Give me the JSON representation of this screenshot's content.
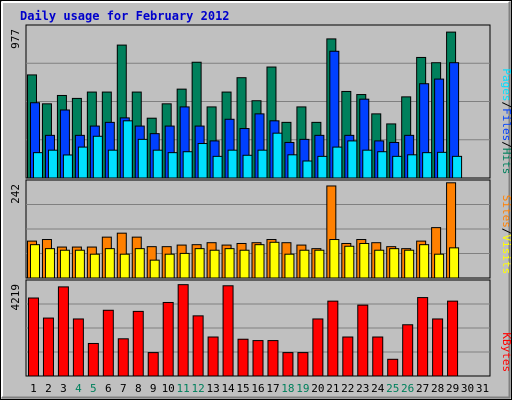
{
  "chart_data": {
    "type": "bar",
    "title": "Daily usage for February 2012",
    "colors": {
      "background": "#c0c0c0",
      "title": "#0000cc",
      "hits": "#00805c",
      "files": "#0040ff",
      "pages": "#00e0ff",
      "visits": "#ff8000",
      "sites": "#ffff00",
      "kbytes": "#ff0000",
      "weekend_day": "#00805c",
      "weekday": "#000000"
    },
    "days": [
      "1",
      "2",
      "3",
      "4",
      "5",
      "6",
      "7",
      "8",
      "9",
      "10",
      "11",
      "12",
      "13",
      "14",
      "15",
      "16",
      "17",
      "18",
      "19",
      "20",
      "21",
      "22",
      "23",
      "24",
      "25",
      "26",
      "27",
      "28",
      "29",
      "30",
      "31"
    ],
    "weekend_days": [
      4,
      5,
      11,
      12,
      18,
      19,
      25,
      26
    ],
    "panels": [
      {
        "id": "hits-files-pages",
        "axis_max_label": "977",
        "ymax": 977,
        "legend": [
          {
            "text": "Pages",
            "color_key": "pages"
          },
          {
            "text": "/",
            "color_key": "weekday"
          },
          {
            "text": "Files",
            "color_key": "files"
          },
          {
            "text": "/",
            "color_key": "weekday"
          },
          {
            "text": "Hits",
            "color_key": "hits"
          }
        ],
        "series": [
          {
            "name": "Hits",
            "color_key": "hits",
            "values": [
              667,
              480,
              534,
              515,
              556,
              556,
              860,
              556,
              387,
              480,
              575,
              749,
              460,
              556,
              649,
              500,
              718,
              360,
              460,
              360,
              900,
              560,
              540,
              415,
              350,
              525,
              780,
              746,
              944,
              null,
              null
            ]
          },
          {
            "name": "Files",
            "color_key": "files",
            "values": [
              487,
              276,
              440,
              276,
              336,
              360,
              389,
              336,
              287,
              336,
              460,
              336,
              240,
              380,
              320,
              415,
              370,
              230,
              250,
              276,
              820,
              276,
              510,
              240,
              230,
              276,
              610,
              640,
              746,
              null,
              null
            ]
          },
          {
            "name": "Pages",
            "color_key": "pages",
            "values": [
              164,
              180,
              149,
              200,
              270,
              180,
              370,
              250,
              180,
              164,
              170,
              223,
              140,
              180,
              147,
              180,
              290,
              150,
              110,
              140,
              200,
              240,
              180,
              170,
              140,
              150,
              164,
              166,
              140,
              null,
              null
            ]
          }
        ]
      },
      {
        "id": "visits-sites",
        "axis_max_label": "242",
        "ymax": 242,
        "legend": [
          {
            "text": "Sites",
            "color_key": "visits"
          },
          {
            "text": "/",
            "color_key": "weekday"
          },
          {
            "text": "Visits",
            "color_key": "sites"
          }
        ],
        "series": [
          {
            "name": "Visits",
            "color_key": "visits",
            "values": [
              93,
              97,
              78,
              78,
              78,
              103,
              113,
              103,
              79,
              79,
              83,
              84,
              89,
              83,
              87,
              89,
              97,
              89,
              83,
              74,
              232,
              87,
              97,
              89,
              79,
              74,
              93,
              127,
              240,
              null,
              null
            ]
          },
          {
            "name": "Sites",
            "color_key": "sites",
            "values": [
              84,
              74,
              70,
              70,
              60,
              74,
              60,
              74,
              45,
              60,
              62,
              74,
              70,
              74,
              70,
              84,
              90,
              60,
              70,
              70,
              97,
              80,
              87,
              70,
              74,
              70,
              84,
              60,
              76,
              null,
              null
            ]
          }
        ]
      },
      {
        "id": "kbytes",
        "axis_max_label": "4219",
        "ymax": 4219,
        "legend": [
          {
            "text": "KBytes",
            "color_key": "kbytes"
          }
        ],
        "series": [
          {
            "name": "KBytes",
            "color_key": "kbytes",
            "values": [
              3500,
              2600,
              4000,
              2560,
              1460,
              2950,
              1670,
              2900,
              1050,
              3300,
              4100,
              2700,
              1750,
              4050,
              1650,
              1590,
              1590,
              1050,
              1050,
              2560,
              3360,
              1750,
              3180,
              1750,
              750,
              2300,
              3520,
              2560,
              3360,
              null,
              null
            ]
          }
        ]
      }
    ]
  }
}
